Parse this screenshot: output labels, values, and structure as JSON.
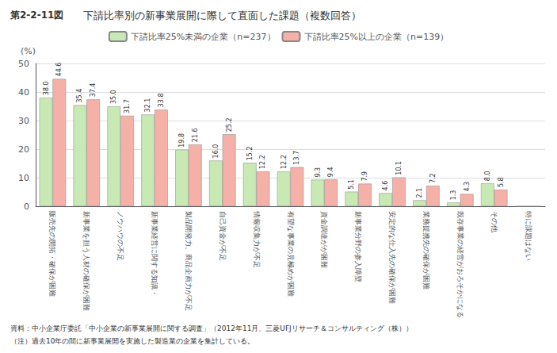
{
  "chart_data": {
    "type": "bar",
    "title": "下請比率別の新事業展開に際して直面した課題（複数回答）",
    "annotations": [
      "第2-2-11図",
      "資料：中小企業庁委託「中小企業の新事業展開に関する調査」（2012年11月、三菱UFJリサーチ＆コンサルティング（株））",
      "（注）過去10年の間に新事業展開を実施した製造業の企業を集計している。"
    ],
    "ylabel": "(%)",
    "categories": [
      "販売先の開拓・確保が困難",
      "新事業を担う人材の確保が困難",
      "ノウハウの不足",
      "新事業経営に関する知識・",
      "製品開発力、商品企画力が不足",
      "自己資金が不足",
      "情報収集力が不足",
      "有望な事業の見極めが困難",
      "資金調達がが困難",
      "新事業分野の参入障壁",
      "安定的な仕入先の確保が困難",
      "業務提携先の確保が困難",
      "既存事業の経営がおろそかになる",
      "その他",
      "特に課題はない"
    ],
    "series": [
      {
        "name": "下請比率25%未満の企業（n=237）",
        "color": "#c8e8b4",
        "values": [
          38.0,
          35.4,
          35.0,
          32.1,
          19.8,
          16.0,
          15.2,
          12.2,
          9.3,
          5.1,
          4.6,
          2.1,
          1.3,
          8.0,
          0
        ],
        "value_labels": [
          "38.0",
          "35.4",
          "35.0",
          "32.1",
          "19.8",
          "16.0",
          "15.2",
          "12.2",
          "9.3",
          "5.1",
          "4.6",
          "2.1",
          "1.3",
          "8.0",
          null
        ]
      },
      {
        "name": "下請比率25%以上の企業（n=139）",
        "color": "#f5b0a8",
        "values": [
          44.6,
          37.4,
          31.7,
          33.8,
          21.6,
          25.2,
          12.2,
          13.7,
          9.4,
          7.9,
          10.1,
          7.2,
          4.3,
          5.8,
          0
        ],
        "value_labels": [
          "44.6",
          "37.4",
          "31.7",
          "33.8",
          "21.6",
          "25.2",
          "12.2",
          "13.7",
          "9.4",
          "7.9",
          "10.1",
          "7.2",
          "4.3",
          "5.8",
          null
        ]
      }
    ],
    "ylim": [
      0,
      50
    ],
    "yticks": [
      0,
      10,
      20,
      30,
      40,
      50
    ],
    "grid": true,
    "legend": "top",
    "data_labels": true
  }
}
